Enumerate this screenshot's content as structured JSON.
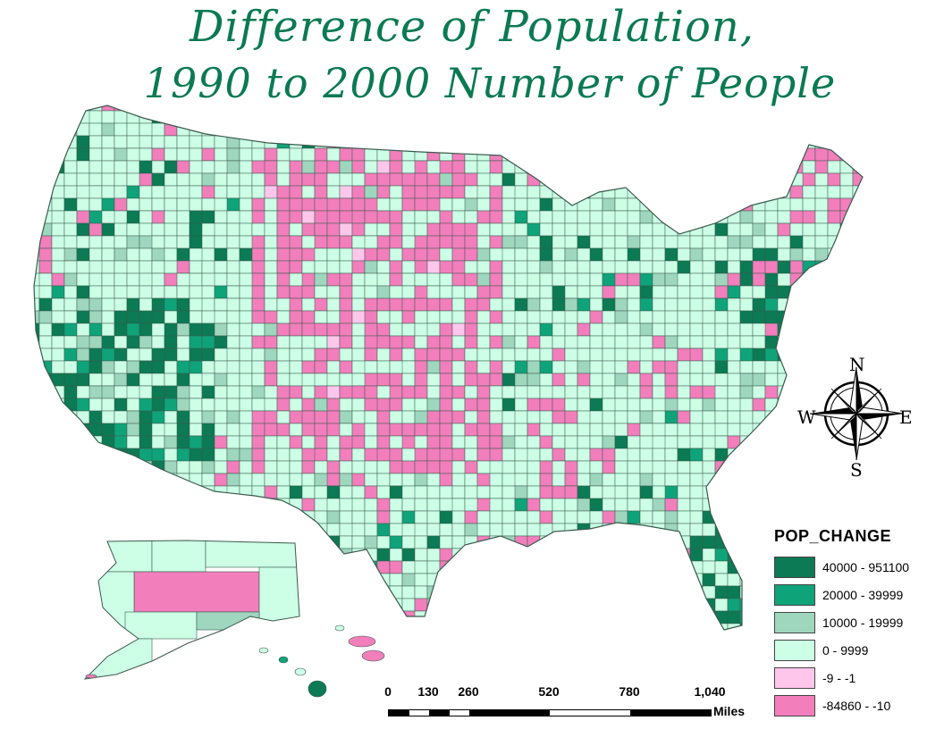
{
  "title": {
    "line1": "Difference of Population,",
    "line2": "1990 to 2000 Number of People"
  },
  "legend": {
    "title": "POP_CHANGE",
    "classes": [
      {
        "label": "40000 - 951100",
        "color": "#0b7a55"
      },
      {
        "label": "20000 - 39999",
        "color": "#0fa37a"
      },
      {
        "label": "10000 - 19999",
        "color": "#9ed6be"
      },
      {
        "label": "0 - 9999",
        "color": "#ccffe6"
      },
      {
        "label": "-9 - -1",
        "color": "#ffc6ec"
      },
      {
        "label": "-84860 - -10",
        "color": "#f27ebc"
      }
    ]
  },
  "scale_bar": {
    "ticks": [
      "0",
      "130",
      "260",
      "520",
      "780",
      "1,040"
    ],
    "unit": "Miles"
  },
  "compass": {
    "n": "N",
    "s": "S",
    "e": "E",
    "w": "W"
  },
  "colors": {
    "county_border": "#3a5a4c"
  }
}
